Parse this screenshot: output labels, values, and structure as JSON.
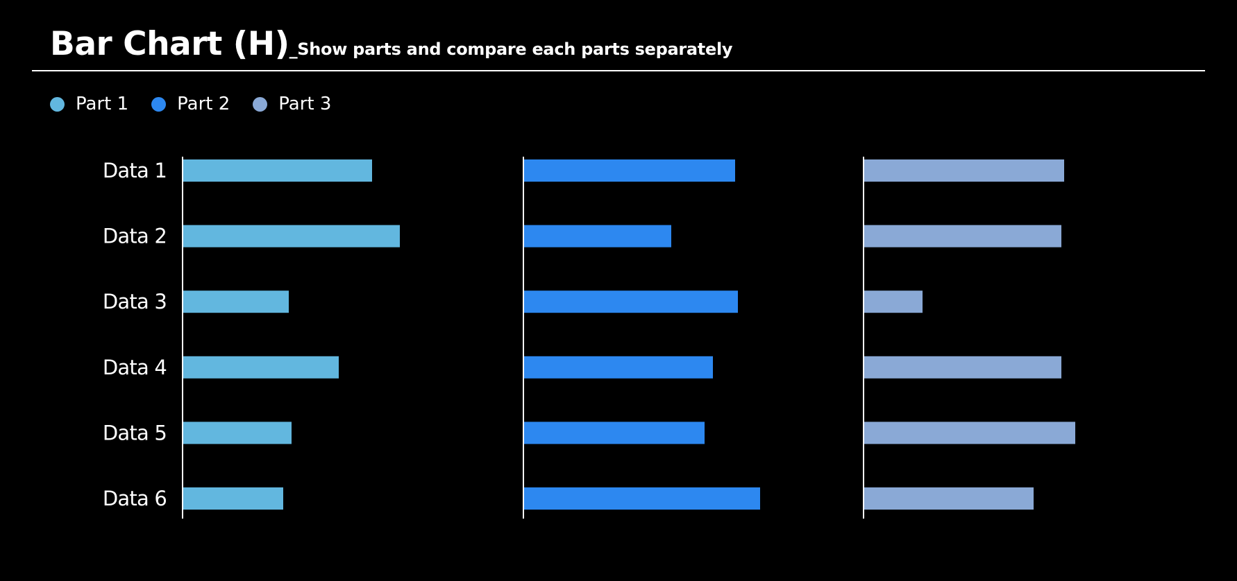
{
  "title": "Bar Chart (H)",
  "subtitle": "_Show parts and compare each parts separately",
  "colors": {
    "background": "#000000",
    "text": "#ffffff",
    "axis": "#ffffff"
  },
  "legend": [
    {
      "label": "Part 1",
      "color": "#62b7df"
    },
    {
      "label": "Part 2",
      "color": "#2d88f0"
    },
    {
      "label": "Part 3",
      "color": "#8aa9d6"
    }
  ],
  "chart_data": {
    "type": "bar",
    "orientation": "horizontal",
    "layout": "small-multiples",
    "title": "Bar Chart (H)",
    "subtitle": "Show parts and compare each parts separately",
    "categories": [
      "Data 1",
      "Data 2",
      "Data 3",
      "Data 4",
      "Data 5",
      "Data 6"
    ],
    "xlim": [
      0,
      100
    ],
    "grid": false,
    "legend_position": "top-left",
    "series": [
      {
        "name": "Part 1",
        "color": "#62b7df",
        "values": [
          68,
          78,
          38,
          56,
          39,
          36
        ]
      },
      {
        "name": "Part 2",
        "color": "#2d88f0",
        "values": [
          76,
          53,
          77,
          68,
          65,
          85
        ]
      },
      {
        "name": "Part 3",
        "color": "#8aa9d6",
        "values": [
          72,
          71,
          21,
          71,
          76,
          61
        ]
      }
    ]
  }
}
